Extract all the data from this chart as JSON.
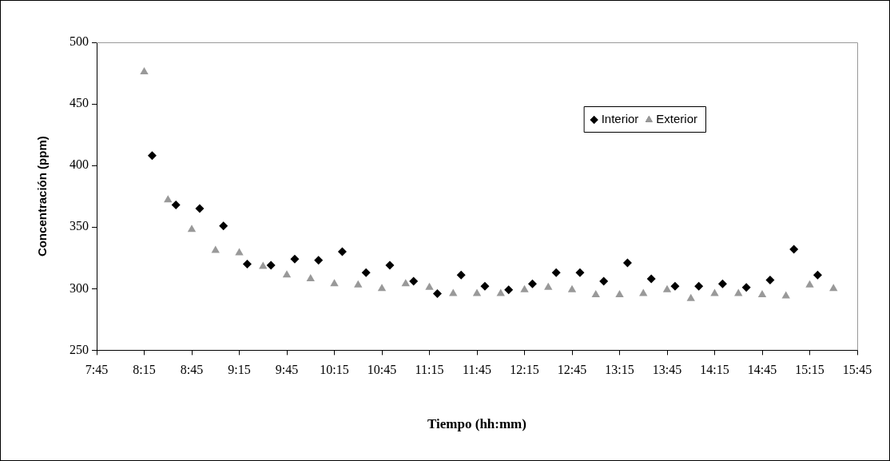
{
  "chart_data": {
    "type": "scatter",
    "xlabel": "Tiempo (hh:mm)",
    "ylabel": "Concentración (ppm)",
    "xlim": [
      7.75,
      15.75
    ],
    "xticks": [
      {
        "value": 7.75,
        "label": "7:45"
      },
      {
        "value": 8.25,
        "label": "8:15"
      },
      {
        "value": 8.75,
        "label": "8:45"
      },
      {
        "value": 9.25,
        "label": "9:15"
      },
      {
        "value": 9.75,
        "label": "9:45"
      },
      {
        "value": 10.25,
        "label": "10:15"
      },
      {
        "value": 10.75,
        "label": "10:45"
      },
      {
        "value": 11.25,
        "label": "11:15"
      },
      {
        "value": 11.75,
        "label": "11:45"
      },
      {
        "value": 12.25,
        "label": "12:15"
      },
      {
        "value": 12.75,
        "label": "12:45"
      },
      {
        "value": 13.25,
        "label": "13:15"
      },
      {
        "value": 13.75,
        "label": "13:45"
      },
      {
        "value": 14.25,
        "label": "14:15"
      },
      {
        "value": 14.75,
        "label": "14:45"
      },
      {
        "value": 15.25,
        "label": "15:15"
      },
      {
        "value": 15.75,
        "label": "15:45"
      }
    ],
    "ylim": [
      250,
      500
    ],
    "yticks": [
      250,
      300,
      350,
      400,
      450,
      500
    ],
    "grid": false,
    "legend": "top right",
    "series": [
      {
        "name": "Interior",
        "color": "#000000",
        "marker": "diamond",
        "x": [
          8.3333,
          8.5833,
          8.8333,
          9.0833,
          9.3333,
          9.5833,
          9.8333,
          10.0833,
          10.3333,
          10.5833,
          10.8333,
          11.0833,
          11.3333,
          11.5833,
          11.8333,
          12.0833,
          12.3333,
          12.5833,
          12.8333,
          13.0833,
          13.3333,
          13.5833,
          13.8333,
          14.0833,
          14.3333,
          14.5833,
          14.8333,
          15.0833,
          15.3333
        ],
        "values": [
          408,
          368,
          365,
          351,
          320,
          319,
          324,
          323,
          330,
          313,
          319,
          306,
          296,
          311,
          302,
          299,
          304,
          313,
          313,
          306,
          321,
          308,
          302,
          302,
          304,
          301,
          307,
          332,
          311
        ]
      },
      {
        "name": "Exterior",
        "color": "#999999",
        "marker": "triangle",
        "x": [
          8.25,
          8.5,
          8.75,
          9.0,
          9.25,
          9.5,
          9.75,
          10.0,
          10.25,
          10.5,
          10.75,
          11.0,
          11.25,
          11.5,
          11.75,
          12.0,
          12.25,
          12.5,
          12.75,
          13.0,
          13.25,
          13.5,
          13.75,
          14.0,
          14.25,
          14.5,
          14.75,
          15.0,
          15.25,
          15.5
        ],
        "values": [
          476,
          372,
          348,
          331,
          329,
          318,
          311,
          308,
          304,
          303,
          300,
          304,
          301,
          296,
          296,
          296,
          299,
          301,
          299,
          295,
          295,
          296,
          299,
          292,
          296,
          296,
          295,
          294,
          303,
          300
        ]
      }
    ]
  }
}
